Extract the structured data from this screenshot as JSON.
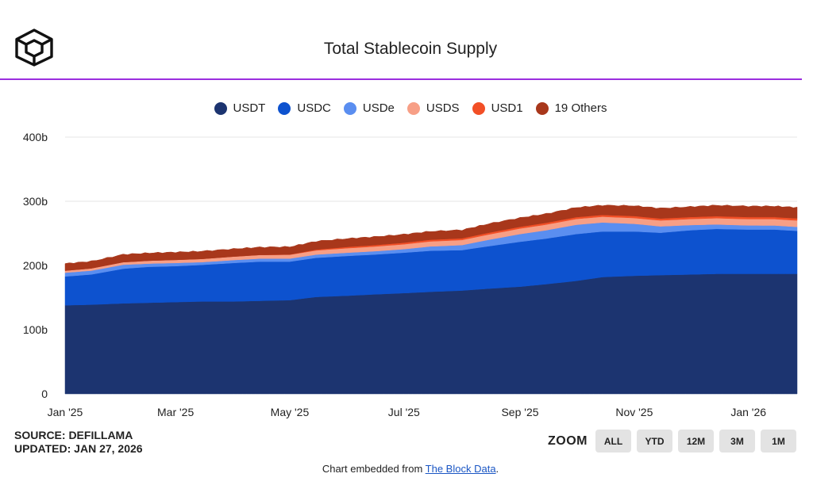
{
  "header": {
    "title": "Total Stablecoin Supply",
    "logo_icon": "the-block-cube-logo"
  },
  "legend": [
    {
      "label": "USDT",
      "color": "#1c3470"
    },
    {
      "label": "USDC",
      "color": "#0d52cf"
    },
    {
      "label": "USDe",
      "color": "#5a8ef0"
    },
    {
      "label": "USDS",
      "color": "#f79f86"
    },
    {
      "label": "USD1",
      "color": "#f24f26"
    },
    {
      "label": "19 Others",
      "color": "#a8371b"
    }
  ],
  "chart_data": {
    "type": "area",
    "stacked": true,
    "title": "Total Stablecoin Supply",
    "xlabel": "",
    "ylabel": "",
    "y_unit": "billion USD",
    "ylim": [
      0,
      400
    ],
    "yticks": [
      "0",
      "100b",
      "200b",
      "300b",
      "400b"
    ],
    "xticks": [
      "Jan '25",
      "Mar '25",
      "May '25",
      "Jul '25",
      "Sep '25",
      "Nov '25",
      "Jan '26"
    ],
    "grid": true,
    "legend_position": "top",
    "x": [
      "2025-01-01",
      "2025-01-15",
      "2025-02-01",
      "2025-02-15",
      "2025-03-01",
      "2025-03-15",
      "2025-04-01",
      "2025-04-15",
      "2025-05-01",
      "2025-05-15",
      "2025-06-01",
      "2025-06-15",
      "2025-07-01",
      "2025-07-15",
      "2025-08-01",
      "2025-08-15",
      "2025-09-01",
      "2025-09-15",
      "2025-10-01",
      "2025-10-15",
      "2025-11-01",
      "2025-11-15",
      "2025-12-01",
      "2025-12-15",
      "2026-01-01",
      "2026-01-15",
      "2026-01-27"
    ],
    "series": [
      {
        "name": "USDT",
        "color": "#1c3470",
        "values": [
          138,
          139,
          141,
          142,
          143,
          144,
          144,
          145,
          146,
          151,
          153,
          155,
          157,
          159,
          161,
          164,
          167,
          171,
          176,
          182,
          184,
          185,
          186,
          187,
          187,
          187,
          187
        ]
      },
      {
        "name": "USDC",
        "color": "#0d52cf",
        "values": [
          45,
          47,
          54,
          56,
          56,
          57,
          60,
          61,
          60,
          61,
          62,
          62,
          63,
          64,
          63,
          66,
          70,
          71,
          73,
          71,
          69,
          66,
          69,
          70,
          69,
          69,
          67
        ]
      },
      {
        "name": "USDe",
        "color": "#5a8ef0",
        "values": [
          5.8,
          6,
          6.2,
          5,
          5,
          4.2,
          4.5,
          4.7,
          4.8,
          5,
          5,
          5.2,
          5.5,
          6.7,
          7.8,
          10,
          12,
          13,
          14.5,
          14,
          12,
          10,
          8,
          7,
          6.5,
          6.3,
          6.2
        ]
      },
      {
        "name": "USDS",
        "color": "#f79f86",
        "values": [
          3.2,
          3.5,
          4,
          4.5,
          4.8,
          5,
          5.4,
          5.7,
          6,
          6.5,
          7,
          7.3,
          7.6,
          7.8,
          8,
          8.2,
          8.6,
          8.8,
          9,
          9,
          9,
          9.2,
          9.5,
          9.7,
          9.8,
          10,
          10
        ]
      },
      {
        "name": "USD1",
        "color": "#f24f26",
        "values": [
          0,
          0,
          0,
          0,
          0,
          0,
          0,
          0.1,
          0.3,
          1.2,
          2,
          2.2,
          2.4,
          2.6,
          2.6,
          2.7,
          2.7,
          2.8,
          2.8,
          2.8,
          3,
          3,
          3,
          3.1,
          3.1,
          3.1,
          3.2
        ]
      },
      {
        "name": "19 Others",
        "color": "#a8371b",
        "values": [
          11,
          11,
          12,
          12,
          12,
          12,
          12,
          12,
          12,
          13,
          13,
          13,
          13,
          13,
          13,
          14,
          14,
          14,
          15,
          15,
          16,
          16,
          16,
          17,
          17,
          17,
          17
        ]
      }
    ]
  },
  "footer": {
    "source": "SOURCE: DEFILLAMA",
    "updated": "UPDATED: JAN 27, 2026",
    "zoom_label": "ZOOM",
    "zoom_buttons": [
      "ALL",
      "YTD",
      "12M",
      "3M",
      "1M"
    ],
    "embed_prefix": "Chart embedded from ",
    "embed_link": "The Block Data",
    "embed_suffix": "."
  }
}
